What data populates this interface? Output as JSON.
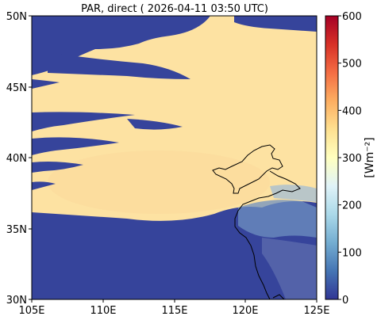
{
  "figure": {
    "title": "PAR, direct ( 2026-04-11 03:50 UTC)"
  },
  "map": {
    "x_ticks": [
      "105E",
      "110E",
      "115E",
      "120E",
      "125E"
    ],
    "y_ticks": [
      "50N",
      "45N",
      "40N",
      "35N",
      "30N"
    ]
  },
  "colorbar": {
    "label": "[Wm⁻²]",
    "range": [
      0,
      600
    ],
    "ticks": [
      "0",
      "100",
      "200",
      "300",
      "400",
      "500",
      "600"
    ],
    "colormap": [
      "#313695",
      "#4575b4",
      "#74add1",
      "#abd9e9",
      "#e0f3f8",
      "#ffffbf",
      "#fee090",
      "#fdae61",
      "#f46d43",
      "#d73027",
      "#a50026"
    ]
  },
  "colors": {
    "clear_sky": "#fde2a2",
    "cloud": "#36449b",
    "coastline": "#000000"
  }
}
